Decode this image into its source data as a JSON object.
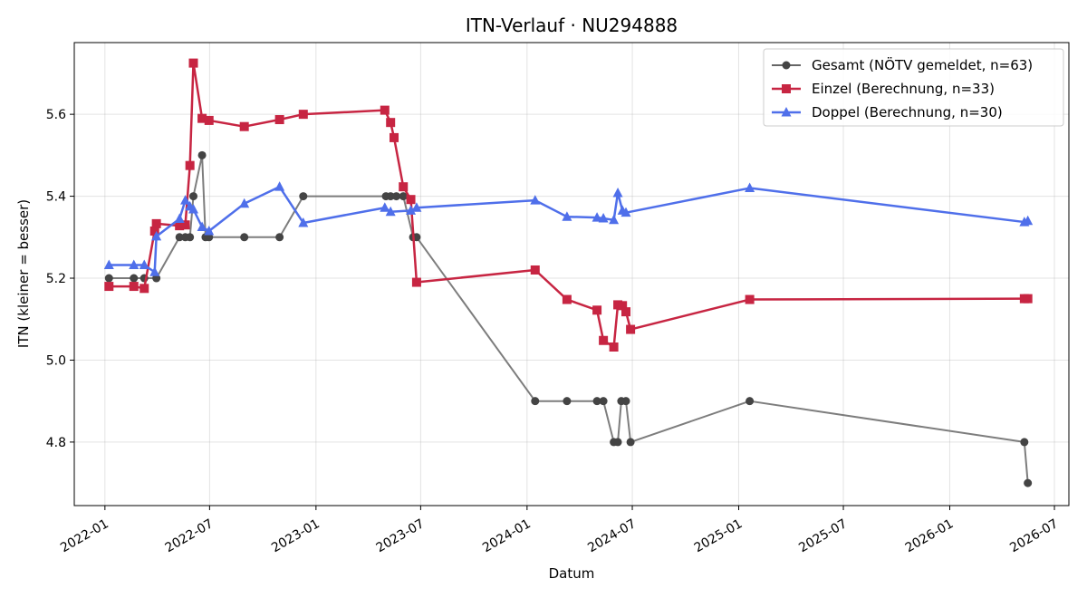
{
  "chart_data": {
    "type": "line",
    "title": "ITN-Verlauf · NU294888",
    "xlabel": "Datum",
    "ylabel": "ITN  (kleiner = besser)",
    "xlim": [
      "2021-11-09",
      "2026-07-26"
    ],
    "ylim": [
      4.645,
      5.775
    ],
    "x_ticks": [
      "2022-01",
      "2022-07",
      "2023-01",
      "2023-07",
      "2024-01",
      "2024-07",
      "2025-01",
      "2025-07",
      "2026-01",
      "2026-07"
    ],
    "y_ticks": [
      "4.8",
      "5.0",
      "5.2",
      "5.4",
      "5.6"
    ],
    "grid": true,
    "legend_position": "top-right",
    "series": [
      {
        "name": "Gesamt (NÖTV gemeldet, n=63)",
        "color": "#666666",
        "marker": "circle",
        "points": [
          [
            "2022-01-08",
            5.2
          ],
          [
            "2022-02-20",
            5.2
          ],
          [
            "2022-03-10",
            5.2
          ],
          [
            "2022-03-31",
            5.2
          ],
          [
            "2022-05-10",
            5.3
          ],
          [
            "2022-05-20",
            5.3
          ],
          [
            "2022-05-28",
            5.3
          ],
          [
            "2022-06-03",
            5.4
          ],
          [
            "2022-06-18",
            5.5
          ],
          [
            "2022-06-24",
            5.3
          ],
          [
            "2022-06-30",
            5.3
          ],
          [
            "2022-08-30",
            5.3
          ],
          [
            "2022-10-30",
            5.3
          ],
          [
            "2022-12-10",
            5.4
          ],
          [
            "2023-05-02",
            5.4
          ],
          [
            "2023-05-10",
            5.4
          ],
          [
            "2023-05-20",
            5.4
          ],
          [
            "2023-06-01",
            5.4
          ],
          [
            "2023-06-18",
            5.3
          ],
          [
            "2023-06-24",
            5.3
          ],
          [
            "2024-01-15",
            4.9
          ],
          [
            "2024-03-10",
            4.9
          ],
          [
            "2024-05-01",
            4.9
          ],
          [
            "2024-05-12",
            4.9
          ],
          [
            "2024-05-30",
            4.8
          ],
          [
            "2024-06-06",
            4.8
          ],
          [
            "2024-06-12",
            4.9
          ],
          [
            "2024-06-20",
            4.9
          ],
          [
            "2024-06-28",
            4.8
          ],
          [
            "2025-01-20",
            4.9
          ],
          [
            "2026-05-10",
            4.8
          ],
          [
            "2026-05-16",
            4.7
          ]
        ]
      },
      {
        "name": "Einzel (Berechnung, n=33)",
        "color": "#c72542",
        "marker": "square",
        "points": [
          [
            "2022-01-08",
            5.18
          ],
          [
            "2022-02-20",
            5.18
          ],
          [
            "2022-03-10",
            5.175
          ],
          [
            "2022-03-28",
            5.315
          ],
          [
            "2022-03-31",
            5.333
          ],
          [
            "2022-05-10",
            5.328
          ],
          [
            "2022-05-20",
            5.33
          ],
          [
            "2022-05-28",
            5.475
          ],
          [
            "2022-06-03",
            5.725
          ],
          [
            "2022-06-18",
            5.59
          ],
          [
            "2022-06-30",
            5.585
          ],
          [
            "2022-08-30",
            5.57
          ],
          [
            "2022-10-30",
            5.587
          ],
          [
            "2022-12-10",
            5.6
          ],
          [
            "2023-04-30",
            5.61
          ],
          [
            "2023-05-10",
            5.58
          ],
          [
            "2023-05-16",
            5.543
          ],
          [
            "2023-06-01",
            5.423
          ],
          [
            "2023-06-14",
            5.392
          ],
          [
            "2023-06-24",
            5.19
          ],
          [
            "2024-01-15",
            5.22
          ],
          [
            "2024-03-10",
            5.148
          ],
          [
            "2024-05-01",
            5.122
          ],
          [
            "2024-05-12",
            5.048
          ],
          [
            "2024-05-30",
            5.032
          ],
          [
            "2024-06-06",
            5.135
          ],
          [
            "2024-06-14",
            5.133
          ],
          [
            "2024-06-20",
            5.118
          ],
          [
            "2024-06-28",
            5.075
          ],
          [
            "2025-01-20",
            5.148
          ],
          [
            "2026-05-10",
            5.15
          ],
          [
            "2026-05-16",
            5.15
          ]
        ]
      },
      {
        "name": "Doppel (Berechnung, n=30)",
        "color": "#4f6fea",
        "marker": "triangle",
        "points": [
          [
            "2022-01-08",
            5.232
          ],
          [
            "2022-02-20",
            5.232
          ],
          [
            "2022-03-10",
            5.232
          ],
          [
            "2022-03-28",
            5.215
          ],
          [
            "2022-03-31",
            5.302
          ],
          [
            "2022-05-10",
            5.345
          ],
          [
            "2022-05-20",
            5.39
          ],
          [
            "2022-05-28",
            5.375
          ],
          [
            "2022-06-03",
            5.368
          ],
          [
            "2022-06-18",
            5.325
          ],
          [
            "2022-06-30",
            5.315
          ],
          [
            "2022-08-30",
            5.382
          ],
          [
            "2022-10-30",
            5.423
          ],
          [
            "2022-12-10",
            5.335
          ],
          [
            "2023-04-30",
            5.372
          ],
          [
            "2023-05-10",
            5.362
          ],
          [
            "2023-06-14",
            5.365
          ],
          [
            "2023-06-24",
            5.372
          ],
          [
            "2024-01-15",
            5.39
          ],
          [
            "2024-03-10",
            5.35
          ],
          [
            "2024-05-01",
            5.348
          ],
          [
            "2024-05-12",
            5.346
          ],
          [
            "2024-05-30",
            5.342
          ],
          [
            "2024-06-06",
            5.408
          ],
          [
            "2024-06-14",
            5.365
          ],
          [
            "2024-06-20",
            5.36
          ],
          [
            "2025-01-20",
            5.42
          ],
          [
            "2026-05-10",
            5.337
          ],
          [
            "2026-05-16",
            5.34
          ]
        ]
      }
    ]
  }
}
